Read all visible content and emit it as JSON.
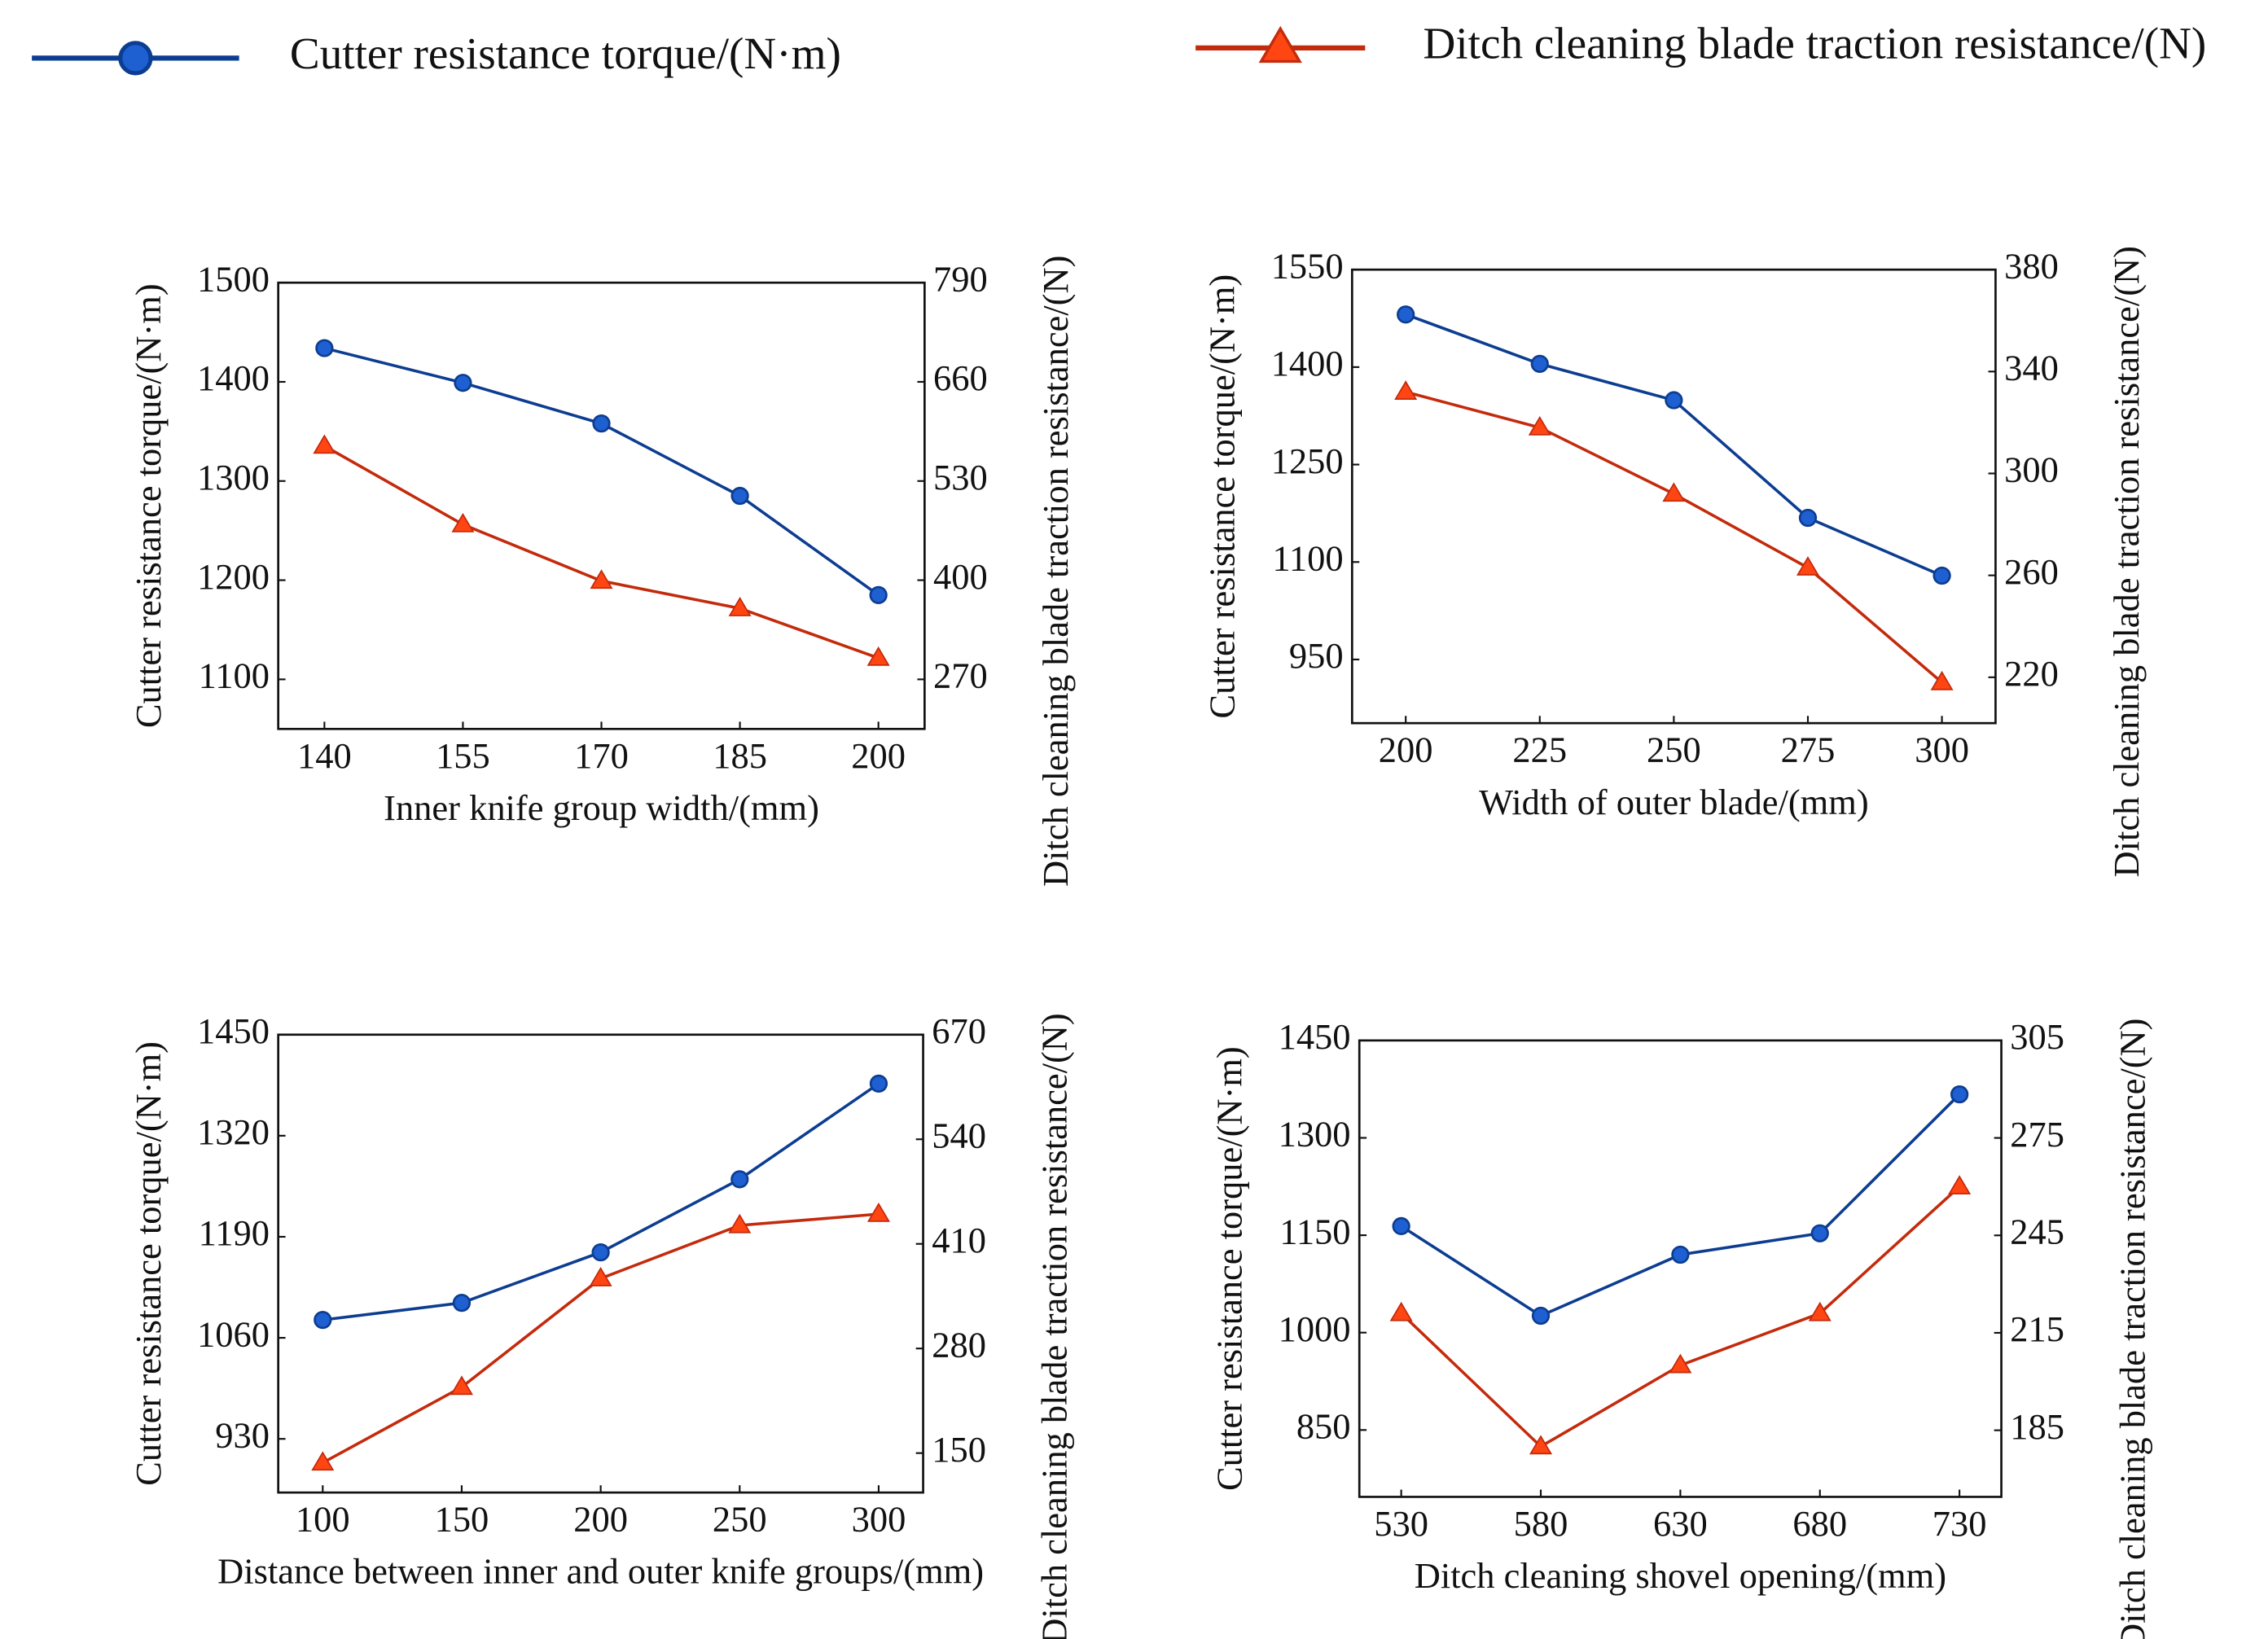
{
  "legend": [
    {
      "name": "Cutter resistance torque/(N·m)",
      "color": "#0d3d91",
      "marker": "circle"
    },
    {
      "name": "Ditch cleaning blade traction resistance/(N)",
      "color": "#c42a0c",
      "marker": "triangle"
    }
  ],
  "chart_data": [
    {
      "type": "line",
      "xlabel": "Inner knife group width/(mm)",
      "ylabel": "Cutter resistance torque/(N·m)",
      "y2label": "Ditch cleaning blade traction resistance/(N)",
      "x": [
        140,
        155,
        170,
        185,
        200
      ],
      "xlim": [
        135,
        205
      ],
      "xticks": [
        140,
        155,
        170,
        185,
        200
      ],
      "ylim": [
        1050,
        1500
      ],
      "yticks": [
        1100,
        1200,
        1300,
        1400,
        1500
      ],
      "y2lim": [
        205,
        790
      ],
      "y2ticks": [
        270,
        400,
        530,
        660,
        790
      ],
      "series": [
        {
          "values": [
            1434,
            1399,
            1358,
            1285,
            1185
          ]
        },
        {
          "values": [
            576,
            473,
            399,
            363,
            298
          ],
          "axis": "y2"
        }
      ]
    },
    {
      "type": "line",
      "xlabel": "Width of outer blade/(mm)",
      "ylabel": "Cutter resistance torque/(N·m)",
      "y2label": "Ditch cleaning blade traction resistance/(N)",
      "x": [
        200,
        225,
        250,
        275,
        300
      ],
      "xlim": [
        190,
        310
      ],
      "xticks": [
        200,
        225,
        250,
        275,
        300
      ],
      "ylim": [
        852,
        1550
      ],
      "yticks": [
        950,
        1100,
        1250,
        1400,
        1550
      ],
      "y2lim": [
        202,
        380
      ],
      "y2ticks": [
        220,
        260,
        300,
        340,
        380
      ],
      "series": [
        {
          "values": [
            1481,
            1405,
            1349,
            1168,
            1079
          ]
        },
        {
          "values": [
            332,
            318,
            292,
            263,
            218
          ],
          "axis": "y2"
        }
      ]
    },
    {
      "type": "line",
      "xlabel": "Distance between inner and outer knife groups/(mm)",
      "ylabel": "Cutter resistance torque/(N·m)",
      "y2label": "Ditch cleaning blade traction resistance/(N)",
      "x": [
        100,
        150,
        200,
        250,
        300
      ],
      "xlim": [
        84,
        316
      ],
      "xticks": [
        100,
        150,
        200,
        250,
        300
      ],
      "ylim": [
        861,
        1450
      ],
      "yticks": [
        930,
        1060,
        1190,
        1320,
        1450
      ],
      "y2lim": [
        101,
        670
      ],
      "y2ticks": [
        150,
        280,
        410,
        540,
        670
      ],
      "series": [
        {
          "values": [
            1083,
            1105,
            1170,
            1264,
            1387
          ]
        },
        {
          "values": [
            138,
            232,
            367,
            433,
            447
          ],
          "axis": "y2"
        }
      ]
    },
    {
      "type": "line",
      "xlabel": "Ditch cleaning shovel opening/(mm)",
      "ylabel": "Cutter resistance torque/(N·m)",
      "y2label": "Ditch cleaning blade traction resistance/(N)",
      "x": [
        530,
        580,
        630,
        680,
        730
      ],
      "xlim": [
        515,
        745
      ],
      "xticks": [
        530,
        580,
        630,
        680,
        730
      ],
      "ylim": [
        747,
        1450
      ],
      "yticks": [
        850,
        1000,
        1150,
        1300,
        1450
      ],
      "y2lim": [
        164.5,
        305
      ],
      "y2ticks": [
        185,
        215,
        245,
        275,
        305
      ],
      "series": [
        {
          "values": [
            1164,
            1026,
            1120,
            1153,
            1367
          ]
        },
        {
          "values": [
            221,
            180,
            205,
            221,
            260
          ],
          "axis": "y2"
        }
      ]
    }
  ]
}
